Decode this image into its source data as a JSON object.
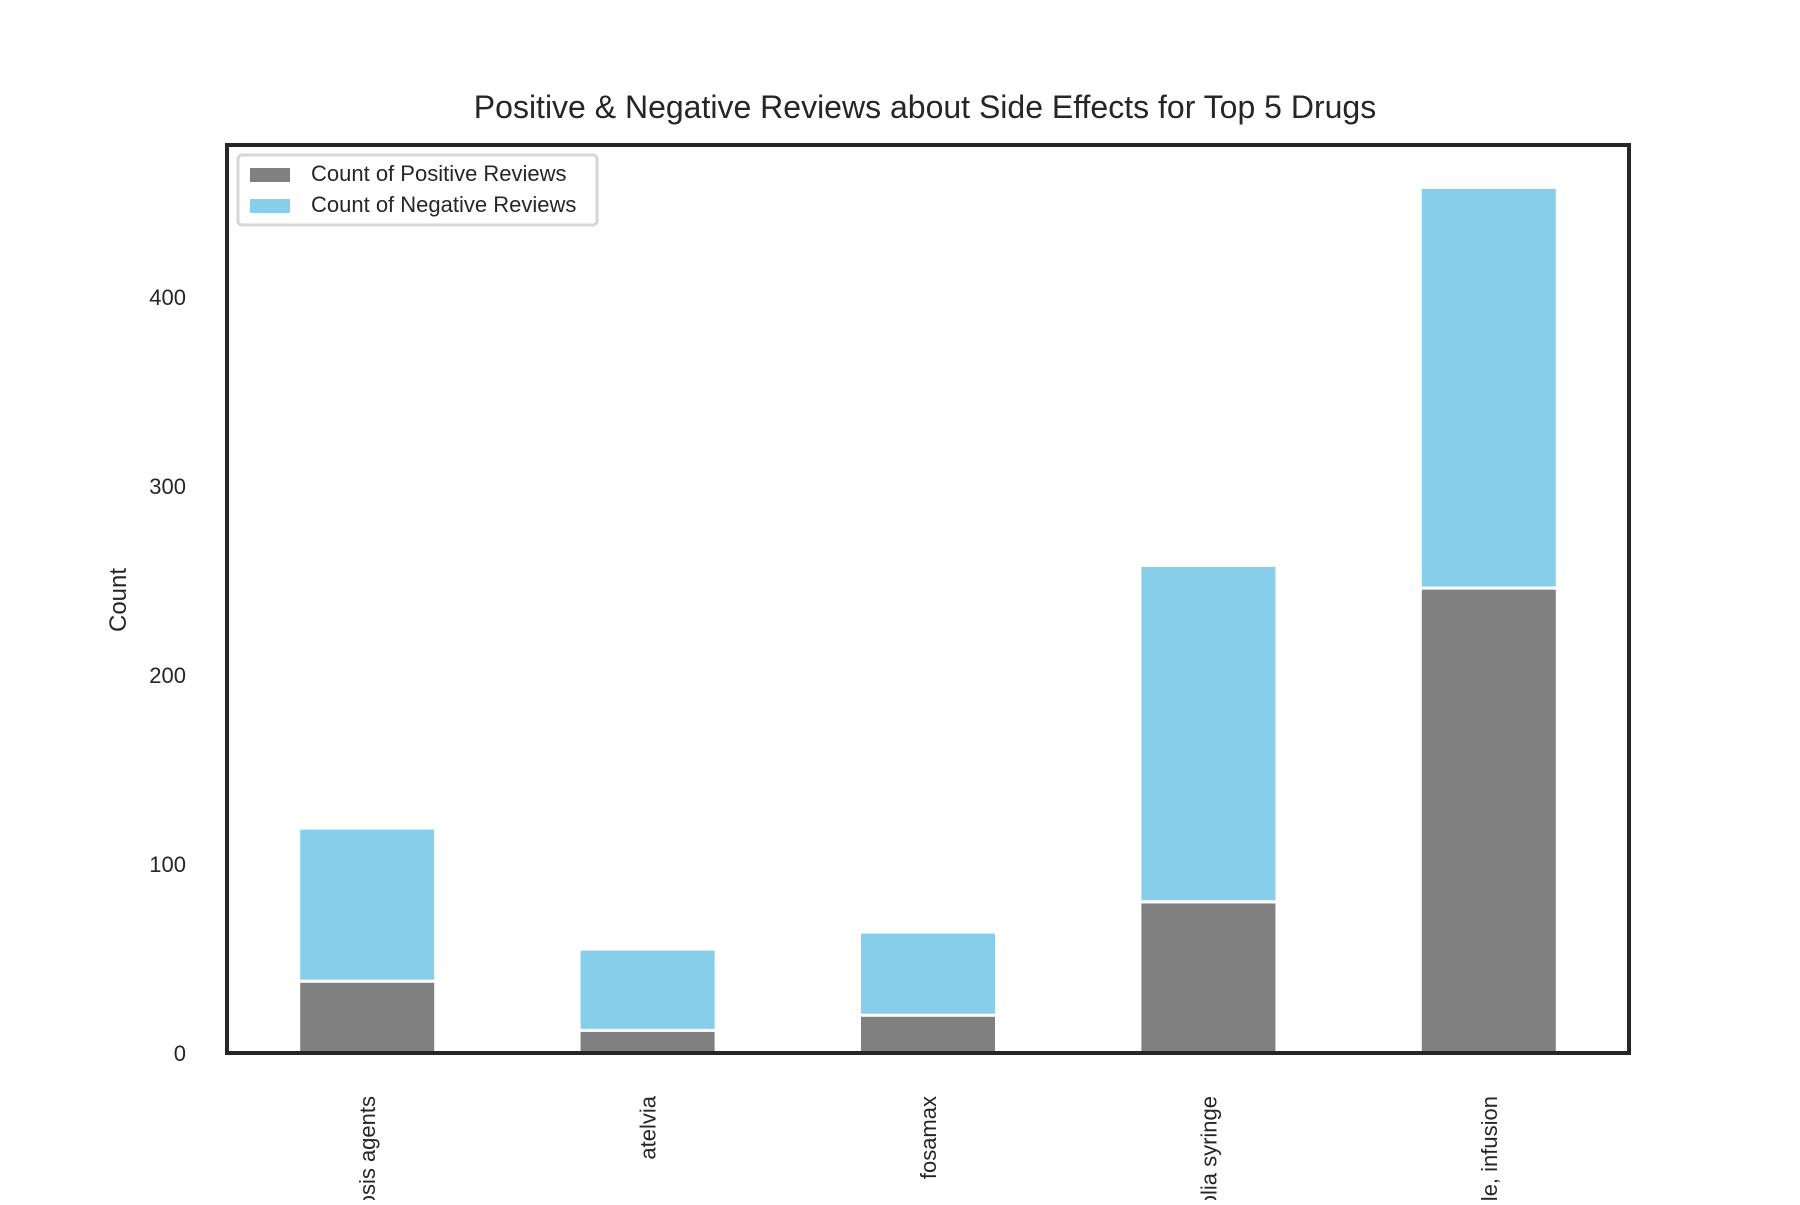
{
  "chart_data": {
    "type": "bar",
    "stacked": true,
    "title": "Positive & Negative Reviews about Side Effects for Top 5 Drugs",
    "xlabel": "",
    "ylabel": "Count",
    "ylim": [
      0,
      480
    ],
    "yticks": [
      0,
      100,
      200,
      300,
      400
    ],
    "categories": [
      "osteoporosis agents",
      "atelvia",
      "fosamax",
      "prolia syringe",
      "reclast bottle, infusion"
    ],
    "category_tick_labels": [
      "osis agents",
      "atelvia",
      "fosamax",
      "olia syringe",
      "le, infusion"
    ],
    "series": [
      {
        "name": "Count of Positive Reviews",
        "color": "#808080",
        "values": [
          38,
          12,
          20,
          80,
          246
        ]
      },
      {
        "name": "Count of Negative Reviews",
        "color": "#87CEEB",
        "values": [
          81,
          43,
          44,
          178,
          212
        ]
      }
    ],
    "grid": false,
    "legend_position": "upper-left"
  }
}
